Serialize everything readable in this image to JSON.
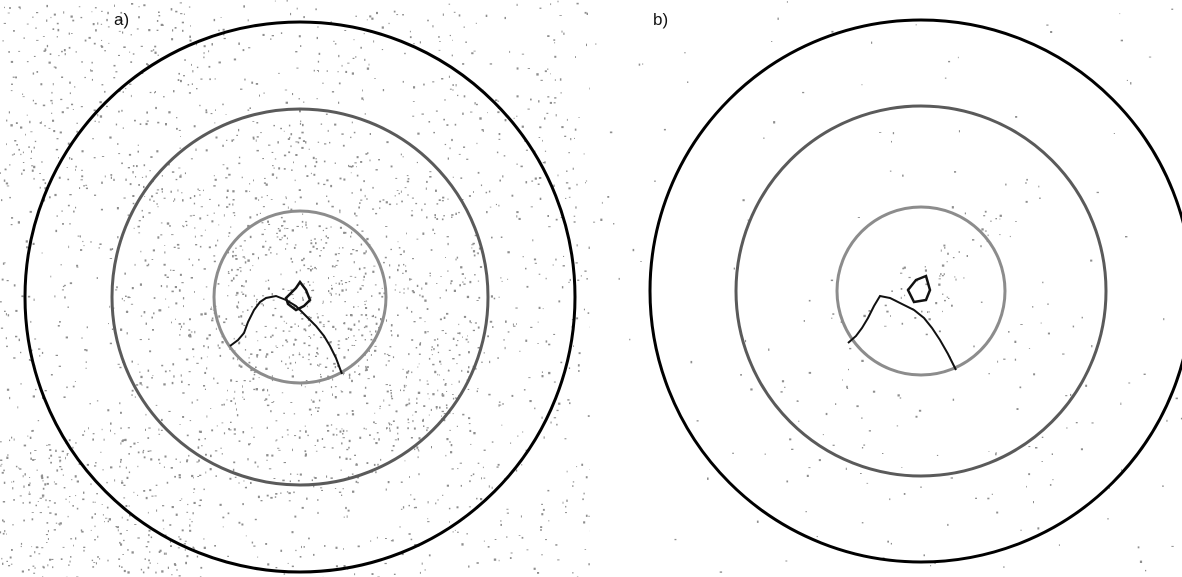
{
  "panels": [
    {
      "label": "a)"
    },
    {
      "label": "b)"
    }
  ],
  "colors": {
    "outer_ring": "#000000",
    "middle_ring": "#5a5a5a",
    "inner_ring": "#8c8c8c",
    "texture": "#8e8e8e",
    "trace": "#111111"
  }
}
